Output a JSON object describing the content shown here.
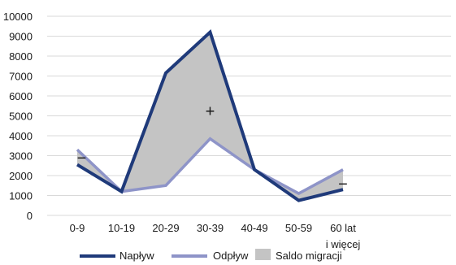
{
  "chart_data": {
    "type": "line",
    "title": "",
    "xlabel": "",
    "ylabel": "",
    "categories": [
      "0-9",
      "10-19",
      "20-29",
      "30-39",
      "40-49",
      "50-59",
      "60 lat i więcej"
    ],
    "category_lines": [
      [
        "0-9"
      ],
      [
        "10-19"
      ],
      [
        "20-29"
      ],
      [
        "30-39"
      ],
      [
        "40-49"
      ],
      [
        "50-59"
      ],
      [
        "60 lat",
        "i więcej"
      ]
    ],
    "y_ticks": [
      "0",
      "1000",
      "2000",
      "3000",
      "4000",
      "5000",
      "6000",
      "7000",
      "8000",
      "9000",
      "10000"
    ],
    "ylim": [
      0,
      10000
    ],
    "grid": true,
    "legend_position": "bottom",
    "series": [
      {
        "name": "Napływ",
        "values": [
          2550,
          1200,
          7150,
          9200,
          2300,
          750,
          1300
        ],
        "color": "#1f3a7a"
      },
      {
        "name": "Odpływ",
        "values": [
          3300,
          1200,
          1500,
          3850,
          2300,
          1100,
          2300
        ],
        "color": "#8e94c8"
      }
    ],
    "area": {
      "name": "Saldo migracji",
      "between": [
        "Napływ",
        "Odpływ"
      ],
      "color": "#c4c4c4"
    },
    "annotations": [
      {
        "text": "−",
        "x": 0.1,
        "y": 2850
      },
      {
        "text": "+",
        "x": 3.0,
        "y": 5200
      },
      {
        "text": "−",
        "x": 6.0,
        "y": 1550
      }
    ]
  }
}
